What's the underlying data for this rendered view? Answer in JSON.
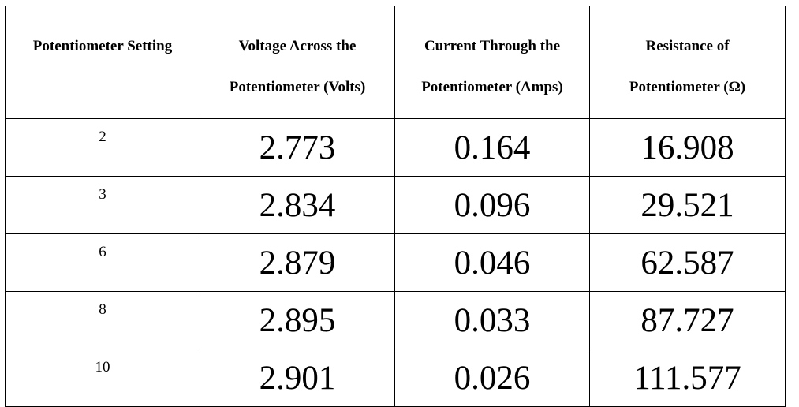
{
  "table": {
    "headers": [
      [
        "Potentiometer Setting"
      ],
      [
        "Voltage Across the",
        "Potentiometer (Volts)"
      ],
      [
        "Current Through  the",
        "Potentiometer (Amps)"
      ],
      [
        "Resistance of",
        "Potentiometer (Ω)"
      ]
    ],
    "rows": [
      {
        "setting": "2",
        "voltage": "2.773",
        "current": "0.164",
        "resistance": "16.908"
      },
      {
        "setting": "3",
        "voltage": "2.834",
        "current": "0.096",
        "resistance": "29.521"
      },
      {
        "setting": "6",
        "voltage": "2.879",
        "current": "0.046",
        "resistance": "62.587"
      },
      {
        "setting": "8",
        "voltage": "2.895",
        "current": "0.033",
        "resistance": "87.727"
      },
      {
        "setting": "10",
        "voltage": "2.901",
        "current": "0.026",
        "resistance": "111.577"
      }
    ]
  }
}
